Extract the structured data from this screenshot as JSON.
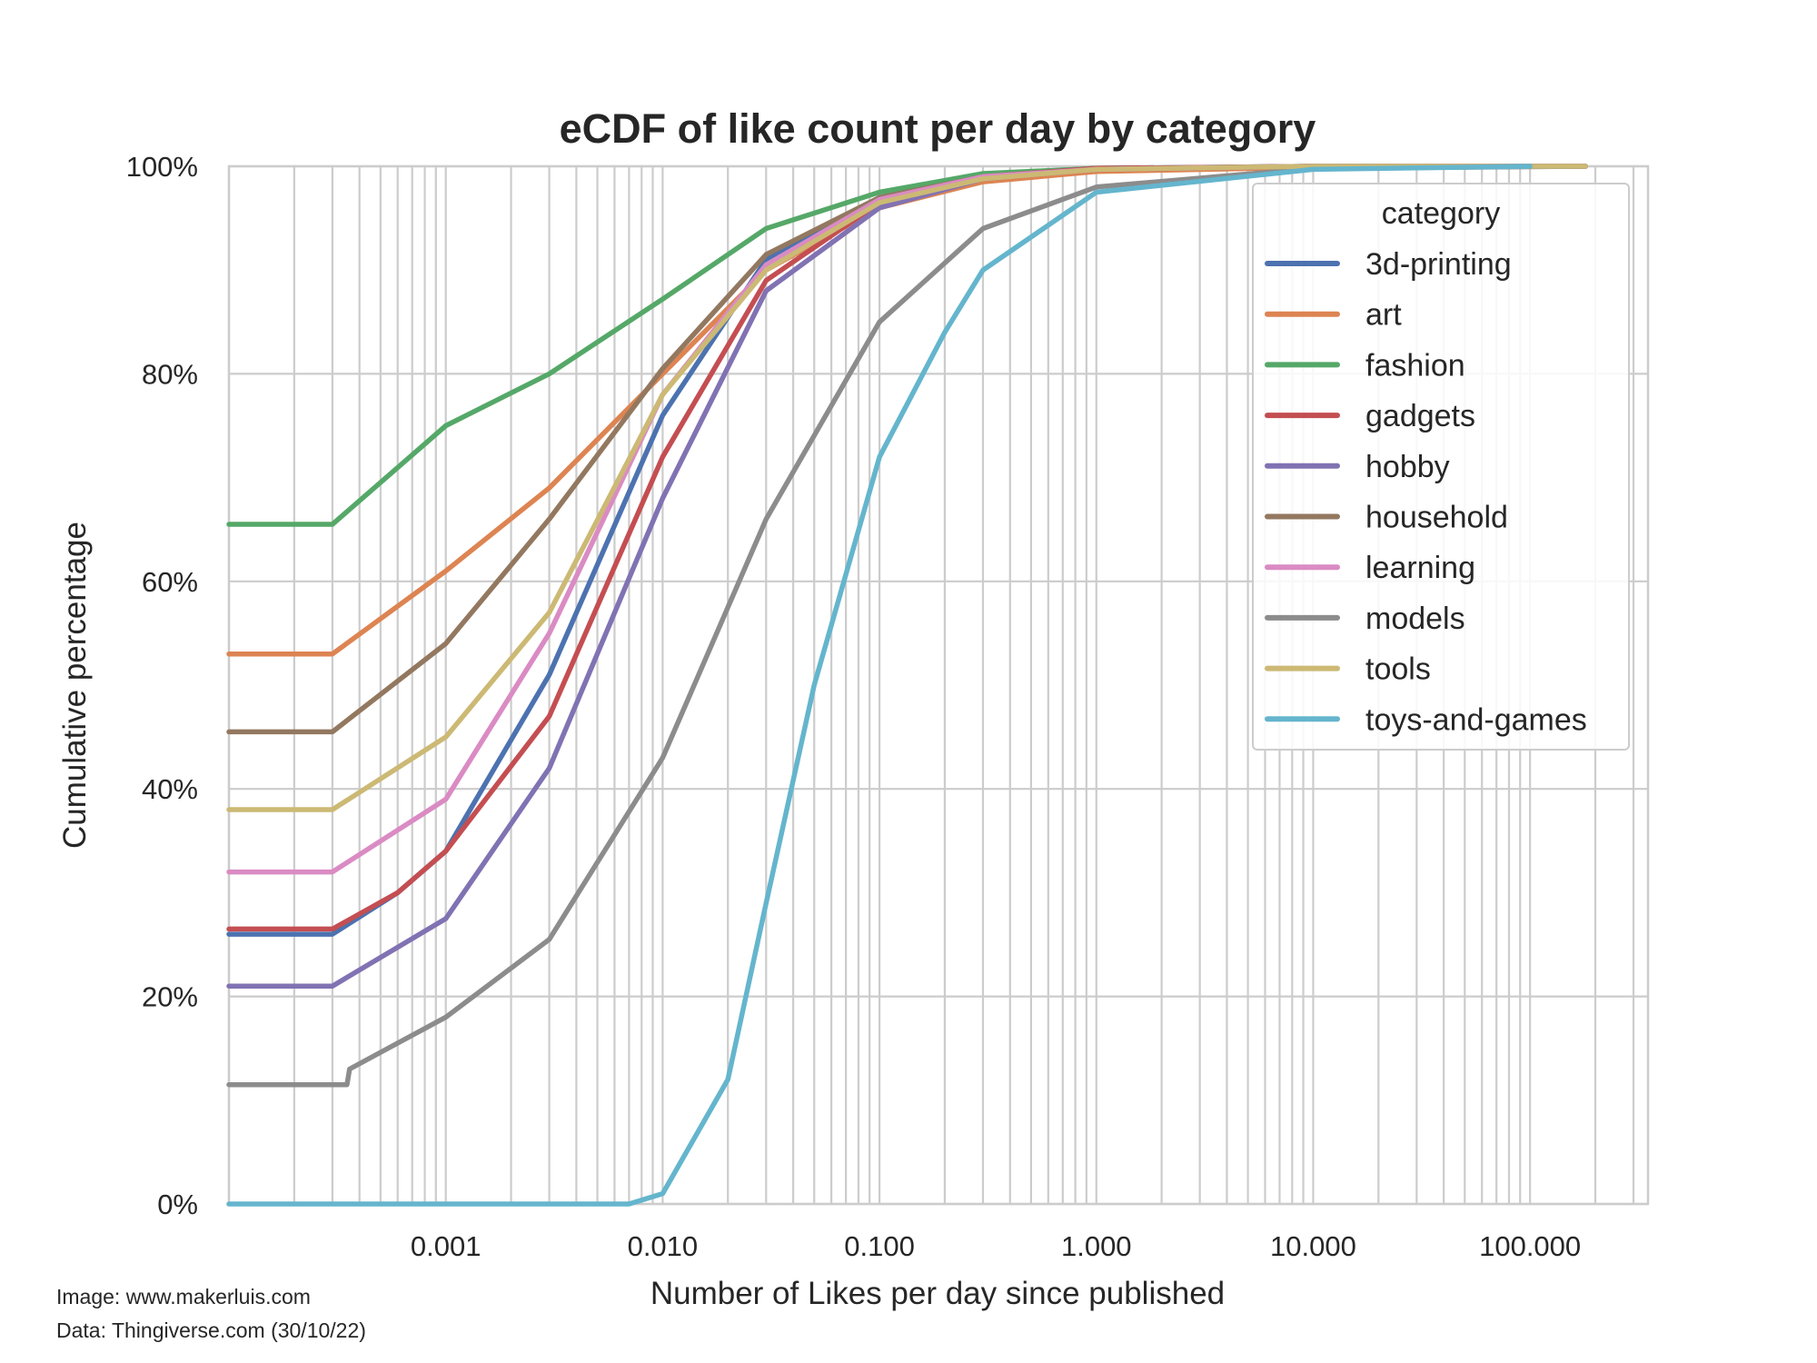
{
  "chart_data": {
    "type": "line",
    "title": "eCDF of like count per day by category",
    "xlabel": "Number of Likes per day since published",
    "ylabel": "Cumulative percentage",
    "xscale": "log",
    "xlim": [
      0.0001,
      350
    ],
    "ylim": [
      0,
      100
    ],
    "xticks": [
      0.001,
      0.01,
      0.1,
      1,
      10,
      100
    ],
    "xtick_labels": [
      "0.001",
      "0.010",
      "0.100",
      "1.000",
      "10.000",
      "100.000"
    ],
    "yticks": [
      0,
      20,
      40,
      60,
      80,
      100
    ],
    "ytick_labels": [
      "0%",
      "20%",
      "40%",
      "60%",
      "80%",
      "100%"
    ],
    "grid": true,
    "legend": {
      "title": "category",
      "placement": "top-right"
    },
    "series": [
      {
        "name": "3d-printing",
        "color": "#4c72b0",
        "x": [
          0.0001,
          0.0003,
          0.0006,
          0.001,
          0.003,
          0.01,
          0.03,
          0.1,
          0.3,
          1,
          10,
          180
        ],
        "y": [
          26,
          26,
          30,
          34,
          51,
          76,
          91,
          97,
          99.2,
          99.8,
          100,
          100
        ]
      },
      {
        "name": "art",
        "color": "#dd8452",
        "x": [
          0.0001,
          0.0003,
          0.001,
          0.003,
          0.01,
          0.03,
          0.1,
          0.3,
          1,
          10,
          180
        ],
        "y": [
          53,
          53,
          61,
          69,
          80,
          90,
          96,
          98.5,
          99.5,
          99.9,
          100
        ]
      },
      {
        "name": "fashion",
        "color": "#55a868",
        "x": [
          0.0001,
          0.0003,
          0.001,
          0.003,
          0.01,
          0.03,
          0.1,
          0.3,
          1,
          10,
          180
        ],
        "y": [
          65.5,
          65.5,
          75,
          80,
          87.2,
          94,
          97.5,
          99.3,
          99.8,
          100,
          100
        ]
      },
      {
        "name": "gadgets",
        "color": "#c44e52",
        "x": [
          0.0001,
          0.0003,
          0.0006,
          0.001,
          0.003,
          0.01,
          0.03,
          0.1,
          0.3,
          1,
          10,
          180
        ],
        "y": [
          26.5,
          26.5,
          30,
          34,
          47,
          72,
          89,
          96.5,
          99,
          99.8,
          100,
          100
        ]
      },
      {
        "name": "hobby",
        "color": "#8172b3",
        "x": [
          0.0001,
          0.0003,
          0.001,
          0.003,
          0.01,
          0.03,
          0.1,
          0.3,
          1,
          10,
          180
        ],
        "y": [
          21,
          21,
          27.5,
          42,
          68,
          88,
          96,
          98.8,
          99.7,
          100,
          100
        ]
      },
      {
        "name": "household",
        "color": "#937860",
        "x": [
          0.0001,
          0.0003,
          0.001,
          0.003,
          0.01,
          0.03,
          0.1,
          0.3,
          1,
          10,
          180
        ],
        "y": [
          45.5,
          45.5,
          54,
          66,
          80.5,
          91.5,
          97,
          99,
          99.7,
          100,
          100
        ]
      },
      {
        "name": "learning",
        "color": "#da8bc3",
        "x": [
          0.0001,
          0.0003,
          0.001,
          0.003,
          0.01,
          0.03,
          0.1,
          0.3,
          1,
          10,
          180
        ],
        "y": [
          32,
          32,
          39,
          55,
          78,
          90.5,
          96.8,
          99,
          99.7,
          100,
          100
        ]
      },
      {
        "name": "models",
        "color": "#8c8c8c",
        "x": [
          0.0001,
          0.00035,
          0.00036,
          0.001,
          0.003,
          0.01,
          0.03,
          0.1,
          0.3,
          1,
          10,
          180
        ],
        "y": [
          11.5,
          11.5,
          13,
          18,
          25.5,
          43,
          66,
          85,
          94,
          98,
          99.8,
          100
        ]
      },
      {
        "name": "tools",
        "color": "#ccb974",
        "x": [
          0.0001,
          0.0003,
          0.001,
          0.003,
          0.01,
          0.03,
          0.1,
          0.3,
          1,
          10,
          180
        ],
        "y": [
          38,
          38,
          45,
          57,
          78,
          90,
          96.5,
          98.8,
          99.7,
          100,
          100
        ]
      },
      {
        "name": "toys-and-games",
        "color": "#64b5cd",
        "x": [
          0.0001,
          0.007,
          0.01,
          0.02,
          0.03,
          0.05,
          0.1,
          0.2,
          0.3,
          1,
          10,
          100
        ],
        "y": [
          0,
          0,
          1,
          12,
          29,
          50,
          72,
          84,
          90,
          97.5,
          99.7,
          100
        ]
      }
    ]
  },
  "footer": {
    "image_credit": "Image: www.makerluis.com",
    "data_credit": "Data: Thingiverse.com (30/10/22)"
  }
}
